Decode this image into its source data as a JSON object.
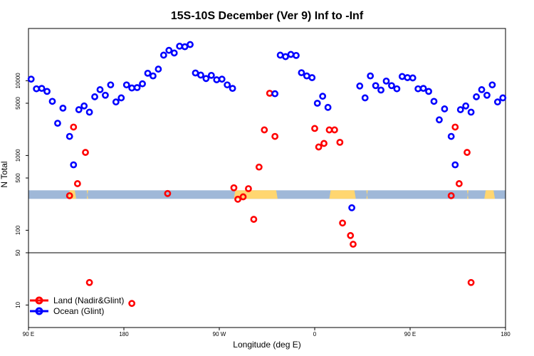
{
  "chart_data": {
    "type": "scatter",
    "title": "15S-10S December (Ver 9)   Inf to -Inf",
    "xlabel": "Longitude (deg E)",
    "ylabel": "N Total",
    "scale_y": "log",
    "xlim": [
      0,
      360
    ],
    "ylim": [
      5,
      50000
    ],
    "x_ticks": [
      {
        "x": 0,
        "label": "90 E"
      },
      {
        "x": 72,
        "label": "180"
      },
      {
        "x": 144,
        "label": "90 W"
      },
      {
        "x": 216,
        "label": "0"
      },
      {
        "x": 288,
        "label": "90 E"
      },
      {
        "x": 360,
        "label": "180"
      }
    ],
    "y_ticks": [
      {
        "y": 10,
        "label": "10"
      },
      {
        "y": 50,
        "label": "50"
      },
      {
        "y": 100,
        "label": "100"
      },
      {
        "y": 500,
        "label": "500"
      },
      {
        "y": 1000,
        "label": "1000"
      },
      {
        "y": 5000,
        "label": "5000"
      },
      {
        "y": 10000,
        "label": "10000"
      }
    ],
    "separator_y": 50,
    "landmask": {
      "y": 300,
      "ocean_color": "#9fb8d8",
      "land_color": "#ffd670",
      "land_ranges": [
        [
          30,
          36
        ],
        [
          44,
          45
        ],
        [
          155,
          188
        ],
        [
          227,
          247
        ],
        [
          255,
          256
        ],
        [
          344,
          352
        ],
        [
          331,
          332
        ]
      ]
    },
    "series": [
      {
        "name": "Land (Nadir&Glint)",
        "color": "#ff0000",
        "points": [
          {
            "x": 31,
            "y": 290
          },
          {
            "x": 34,
            "y": 2400
          },
          {
            "x": 37,
            "y": 420
          },
          {
            "x": 43,
            "y": 1100
          },
          {
            "x": 46,
            "y": 20
          },
          {
            "x": 78,
            "y": 10.5
          },
          {
            "x": 105,
            "y": 310
          },
          {
            "x": 155,
            "y": 370
          },
          {
            "x": 158,
            "y": 260
          },
          {
            "x": 162,
            "y": 280
          },
          {
            "x": 166,
            "y": 360
          },
          {
            "x": 170,
            "y": 140
          },
          {
            "x": 174,
            "y": 700
          },
          {
            "x": 178,
            "y": 2200
          },
          {
            "x": 182,
            "y": 6800
          },
          {
            "x": 186,
            "y": 1800
          },
          {
            "x": 216,
            "y": 2300
          },
          {
            "x": 219,
            "y": 1300
          },
          {
            "x": 223,
            "y": 1450
          },
          {
            "x": 227,
            "y": 2200
          },
          {
            "x": 231,
            "y": 2200
          },
          {
            "x": 235,
            "y": 1500
          },
          {
            "x": 237,
            "y": 125
          },
          {
            "x": 243,
            "y": 85
          },
          {
            "x": 245,
            "y": 65
          },
          {
            "x": 319,
            "y": 290
          },
          {
            "x": 322,
            "y": 2400
          },
          {
            "x": 325,
            "y": 420
          },
          {
            "x": 331,
            "y": 1100
          },
          {
            "x": 334,
            "y": 20
          }
        ]
      },
      {
        "name": "Ocean (Glint)",
        "color": "#0000ff",
        "points": [
          {
            "x": 2,
            "y": 10500
          },
          {
            "x": 6,
            "y": 7800
          },
          {
            "x": 10,
            "y": 7900
          },
          {
            "x": 14,
            "y": 7200
          },
          {
            "x": 18,
            "y": 5300
          },
          {
            "x": 22,
            "y": 2700
          },
          {
            "x": 26,
            "y": 4300
          },
          {
            "x": 31,
            "y": 1800
          },
          {
            "x": 34,
            "y": 750
          },
          {
            "x": 38,
            "y": 4100
          },
          {
            "x": 42,
            "y": 4600
          },
          {
            "x": 46,
            "y": 3800
          },
          {
            "x": 50,
            "y": 6100
          },
          {
            "x": 54,
            "y": 7600
          },
          {
            "x": 58,
            "y": 6400
          },
          {
            "x": 62,
            "y": 8800
          },
          {
            "x": 66,
            "y": 5200
          },
          {
            "x": 70,
            "y": 5900
          },
          {
            "x": 74,
            "y": 8800
          },
          {
            "x": 78,
            "y": 8000
          },
          {
            "x": 82,
            "y": 8100
          },
          {
            "x": 86,
            "y": 9100
          },
          {
            "x": 90,
            "y": 12600
          },
          {
            "x": 94,
            "y": 11600
          },
          {
            "x": 98,
            "y": 14300
          },
          {
            "x": 102,
            "y": 22000
          },
          {
            "x": 106,
            "y": 25500
          },
          {
            "x": 110,
            "y": 23500
          },
          {
            "x": 114,
            "y": 29000
          },
          {
            "x": 118,
            "y": 28500
          },
          {
            "x": 122,
            "y": 30500
          },
          {
            "x": 126,
            "y": 12700
          },
          {
            "x": 130,
            "y": 11900
          },
          {
            "x": 134,
            "y": 10700
          },
          {
            "x": 138,
            "y": 11800
          },
          {
            "x": 142,
            "y": 10300
          },
          {
            "x": 146,
            "y": 10500
          },
          {
            "x": 150,
            "y": 8800
          },
          {
            "x": 154,
            "y": 7900
          },
          {
            "x": 186,
            "y": 6700
          },
          {
            "x": 190,
            "y": 22000
          },
          {
            "x": 194,
            "y": 21000
          },
          {
            "x": 198,
            "y": 22500
          },
          {
            "x": 202,
            "y": 21800
          },
          {
            "x": 206,
            "y": 12800
          },
          {
            "x": 210,
            "y": 11600
          },
          {
            "x": 214,
            "y": 11000
          },
          {
            "x": 218,
            "y": 5000
          },
          {
            "x": 222,
            "y": 6200
          },
          {
            "x": 226,
            "y": 4400
          },
          {
            "x": 244,
            "y": 200
          },
          {
            "x": 250,
            "y": 8500
          },
          {
            "x": 254,
            "y": 5900
          },
          {
            "x": 258,
            "y": 11600
          },
          {
            "x": 262,
            "y": 8600
          },
          {
            "x": 266,
            "y": 7500
          },
          {
            "x": 270,
            "y": 9900
          },
          {
            "x": 274,
            "y": 8600
          },
          {
            "x": 278,
            "y": 7800
          },
          {
            "x": 282,
            "y": 11400
          },
          {
            "x": 286,
            "y": 11000
          },
          {
            "x": 290,
            "y": 10900
          },
          {
            "x": 294,
            "y": 7800
          },
          {
            "x": 298,
            "y": 7900
          },
          {
            "x": 302,
            "y": 7200
          },
          {
            "x": 306,
            "y": 5300
          },
          {
            "x": 310,
            "y": 3000
          },
          {
            "x": 314,
            "y": 4200
          },
          {
            "x": 319,
            "y": 1800
          },
          {
            "x": 322,
            "y": 750
          },
          {
            "x": 326,
            "y": 4100
          },
          {
            "x": 330,
            "y": 4600
          },
          {
            "x": 334,
            "y": 3800
          },
          {
            "x": 338,
            "y": 6100
          },
          {
            "x": 342,
            "y": 7600
          },
          {
            "x": 346,
            "y": 6400
          },
          {
            "x": 350,
            "y": 8800
          },
          {
            "x": 354,
            "y": 5200
          },
          {
            "x": 358,
            "y": 5900
          }
        ]
      }
    ],
    "legend": {
      "position": "bottom-left",
      "entries": [
        "Land (Nadir&Glint)",
        "Ocean (Glint)"
      ]
    }
  }
}
